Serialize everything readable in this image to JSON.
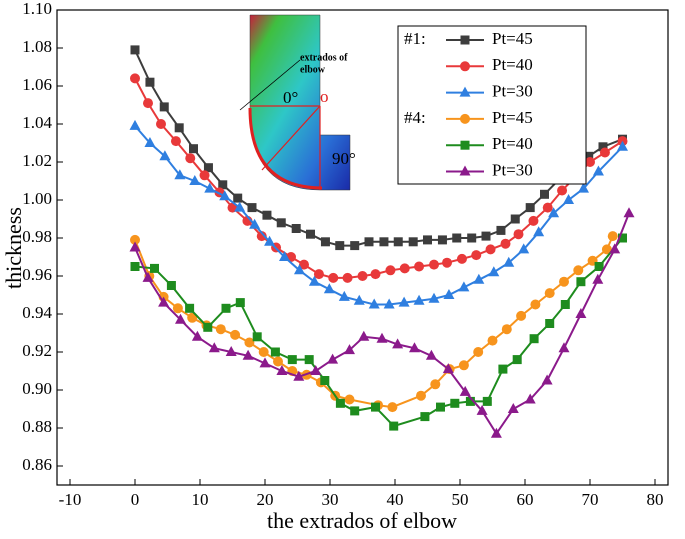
{
  "chart_data": {
    "type": "line",
    "xlabel": "the extrados of elbow",
    "ylabel": "thickness",
    "xlim": [
      -12,
      82
    ],
    "ylim": [
      0.85,
      1.1
    ],
    "xticks": [
      -10,
      0,
      10,
      20,
      30,
      40,
      50,
      60,
      70,
      80
    ],
    "yticks": [
      0.86,
      0.88,
      {
        "value": 0.9,
        "label": "0.90"
      },
      0.92,
      0.94,
      0.96,
      0.98,
      {
        "value": 1.0,
        "label": "1.00"
      },
      1.02,
      1.04,
      1.06,
      1.08,
      {
        "value": 1.1,
        "label": "1.10"
      }
    ],
    "legend_groups": [
      "#1:",
      "#4:"
    ],
    "inset_labels": [
      "extrados of",
      "elbow",
      "0°",
      "o",
      "90°"
    ],
    "series": [
      {
        "name": "Pt=45",
        "color": "#3d3d3d",
        "marker": "square",
        "x": [
          0,
          2.3,
          4.5,
          6.8,
          9,
          11.3,
          13.5,
          15.8,
          18,
          20.3,
          22.5,
          24.8,
          27,
          29.3,
          31.5,
          33.8,
          36,
          38.3,
          40.5,
          42.8,
          45,
          47.3,
          49.5,
          51.8,
          54,
          56.3,
          58.5,
          60.8,
          63,
          65.3,
          67.5,
          69.8,
          72,
          75
        ],
        "values": [
          1.079,
          1.062,
          1.049,
          1.038,
          1.027,
          1.017,
          1.008,
          1.001,
          0.996,
          0.992,
          0.988,
          0.985,
          0.982,
          0.978,
          0.976,
          0.976,
          0.978,
          0.978,
          0.978,
          0.978,
          0.979,
          0.979,
          0.98,
          0.98,
          0.981,
          0.984,
          0.99,
          0.996,
          1.003,
          1.011,
          1.018,
          1.023,
          1.028,
          1.032
        ]
      },
      {
        "name": "Pt=40",
        "color": "#e8393a",
        "marker": "circle",
        "x": [
          0,
          2,
          4,
          6.3,
          8.5,
          10.7,
          13,
          15,
          17.3,
          19.5,
          21.7,
          24,
          26,
          28.3,
          30.5,
          32.7,
          35,
          37,
          39.3,
          41.5,
          43.7,
          46,
          48,
          50.3,
          52.5,
          54.7,
          57,
          59,
          61.3,
          63.5,
          65.7,
          68,
          70,
          72.3,
          75
        ],
        "values": [
          1.064,
          1.051,
          1.04,
          1.031,
          1.022,
          1.013,
          1.004,
          0.996,
          0.989,
          0.981,
          0.975,
          0.97,
          0.966,
          0.961,
          0.959,
          0.959,
          0.96,
          0.961,
          0.963,
          0.964,
          0.965,
          0.966,
          0.967,
          0.969,
          0.971,
          0.974,
          0.977,
          0.982,
          0.989,
          0.996,
          1.005,
          1.013,
          1.02,
          1.025,
          1.031
        ]
      },
      {
        "name": "Pt=30",
        "color": "#2f7fe0",
        "marker": "triangle",
        "x": [
          0,
          2.3,
          4.6,
          6.9,
          9.2,
          11.5,
          13.8,
          16.1,
          18.4,
          20.7,
          23,
          25.3,
          27.6,
          29.9,
          32.2,
          34.5,
          36.8,
          39.1,
          41.4,
          43.7,
          46,
          48.3,
          50.6,
          52.9,
          55.2,
          57.5,
          59.8,
          62.1,
          64.4,
          66.7,
          69,
          71.3,
          75
        ],
        "values": [
          1.039,
          1.03,
          1.023,
          1.013,
          1.01,
          1.006,
          1.002,
          0.996,
          0.987,
          0.978,
          0.97,
          0.963,
          0.957,
          0.953,
          0.949,
          0.947,
          0.945,
          0.945,
          0.946,
          0.947,
          0.948,
          0.95,
          0.954,
          0.958,
          0.962,
          0.967,
          0.974,
          0.983,
          0.993,
          1.0,
          1.006,
          1.015,
          1.028
        ]
      },
      {
        "name": "Pt=45",
        "color": "#f7941d",
        "marker": "circle",
        "x": [
          0,
          2.2,
          4.4,
          6.6,
          8.8,
          11,
          13.2,
          15.4,
          17.6,
          19.8,
          22,
          24.2,
          26.4,
          28.6,
          30.8,
          33,
          37.4,
          39.6,
          44,
          46.2,
          48.4,
          50.6,
          52.8,
          55,
          57.2,
          59.4,
          61.6,
          63.8,
          66,
          68.2,
          70.4,
          72.6,
          73.5
        ],
        "values": [
          0.979,
          0.96,
          0.949,
          0.943,
          0.938,
          0.934,
          0.932,
          0.929,
          0.925,
          0.92,
          0.915,
          0.91,
          0.908,
          0.904,
          0.897,
          0.895,
          0.892,
          0.891,
          0.897,
          0.903,
          0.911,
          0.913,
          0.92,
          0.926,
          0.932,
          0.939,
          0.945,
          0.951,
          0.957,
          0.963,
          0.968,
          0.974,
          0.981
        ]
      },
      {
        "name": "Pt=40",
        "color": "#1e8c1e",
        "marker": "square",
        "x": [
          0,
          3,
          5.6,
          8.4,
          11.2,
          14,
          16.2,
          18.8,
          21.6,
          24.2,
          26.8,
          29.2,
          31.6,
          33.8,
          37,
          39.8,
          44.6,
          47,
          49.2,
          51.6,
          54.2,
          56.6,
          58.8,
          61.4,
          63.8,
          66.2,
          68.6,
          71.4,
          75
        ],
        "values": [
          0.965,
          0.964,
          0.955,
          0.943,
          0.933,
          0.943,
          0.946,
          0.928,
          0.92,
          0.916,
          0.916,
          0.905,
          0.893,
          0.889,
          0.891,
          0.881,
          0.886,
          0.891,
          0.893,
          0.894,
          0.894,
          0.911,
          0.916,
          0.927,
          0.935,
          0.945,
          0.957,
          0.965,
          0.98
        ]
      },
      {
        "name": "Pt=30",
        "color": "#8b1a8b",
        "marker": "triangle",
        "x": [
          0,
          2,
          4.4,
          7,
          9.6,
          12.2,
          14.8,
          17.4,
          20,
          22.6,
          25.2,
          27.8,
          30.4,
          33,
          35.2,
          38,
          40.4,
          43,
          45.6,
          48.2,
          50.8,
          53.4,
          55.6,
          58.2,
          60.8,
          63.4,
          66,
          68.6,
          71.2,
          73.8,
          76
        ],
        "values": [
          0.975,
          0.959,
          0.946,
          0.937,
          0.928,
          0.922,
          0.92,
          0.918,
          0.914,
          0.91,
          0.907,
          0.91,
          0.916,
          0.921,
          0.928,
          0.927,
          0.924,
          0.922,
          0.918,
          0.911,
          0.899,
          0.889,
          0.877,
          0.89,
          0.895,
          0.905,
          0.922,
          0.94,
          0.958,
          0.974,
          0.993
        ]
      }
    ]
  }
}
